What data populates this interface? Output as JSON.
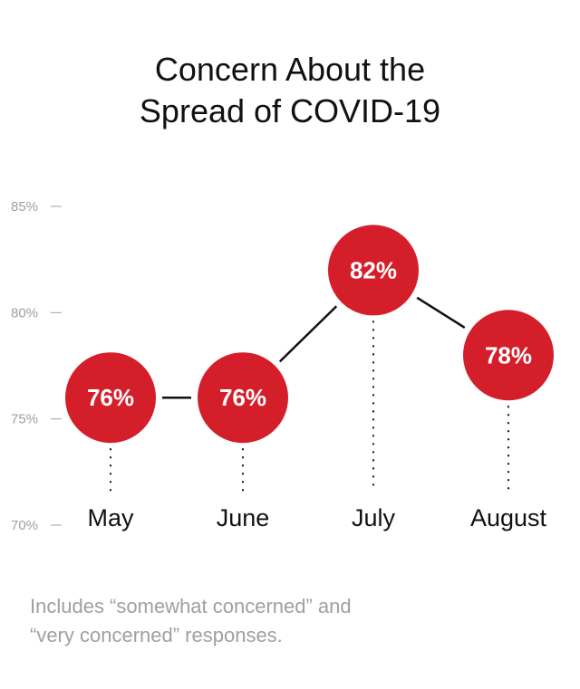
{
  "title": {
    "line1": "Concern About the",
    "line2": "Spread of COVID-19"
  },
  "footnote": {
    "line1": "Includes “somewhat concerned” and",
    "line2": "“very concerned” responses."
  },
  "colors": {
    "marker": "#d41f2b",
    "line": "#111111",
    "axis_text": "#a0a0a0",
    "category_text": "#111111",
    "label_text": "#ffffff"
  },
  "chart_data": {
    "type": "line",
    "categories": [
      "May",
      "June",
      "July",
      "August"
    ],
    "values": [
      76,
      76,
      82,
      78
    ],
    "data_labels": [
      "76%",
      "76%",
      "82%",
      "78%"
    ],
    "y_ticks": [
      70,
      75,
      80,
      85
    ],
    "y_tick_labels": [
      "70%",
      "75%",
      "80%",
      "85%"
    ],
    "ylim": [
      70,
      85
    ],
    "title": "Concern About the Spread of COVID-19",
    "xlabel": "",
    "ylabel": "",
    "grid": false
  }
}
